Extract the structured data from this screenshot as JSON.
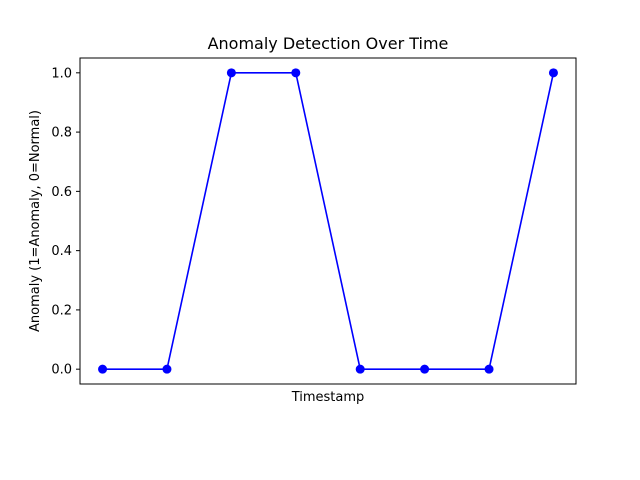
{
  "chart_data": {
    "type": "line",
    "title": "Anomaly Detection Over Time",
    "xlabel": "Timestamp",
    "ylabel": "Anomaly (1=Anomaly, 0=Normal)",
    "x": [
      1,
      2,
      3,
      4,
      5,
      6,
      7,
      8
    ],
    "series": [
      {
        "values": [
          0,
          0,
          1,
          1,
          0,
          0,
          0,
          1
        ],
        "color": "#0000ff",
        "marker": "circle"
      }
    ],
    "xlim": [
      0.65,
      8.35
    ],
    "ylim": [
      -0.05,
      1.05
    ],
    "yticks": [
      0.0,
      0.2,
      0.4,
      0.6,
      0.8,
      1.0
    ],
    "ytick_labels": [
      "0.0",
      "0.2",
      "0.4",
      "0.6",
      "0.8",
      "1.0"
    ],
    "xticks_visible": false,
    "grid": false,
    "legend": "none"
  }
}
